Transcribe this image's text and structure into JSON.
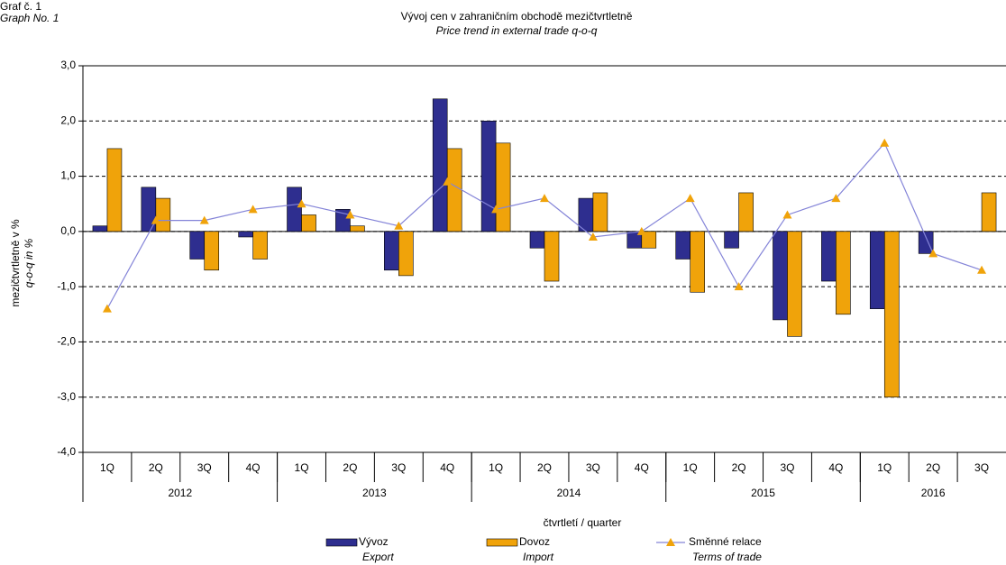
{
  "chart_data": {
    "type": "bar",
    "label_cs": "Graf č. 1",
    "label_en": "Graph No. 1",
    "title": "Vývoj cen v zahraničním obchodě mezičtvrtletně",
    "subtitle": "Price trend in external trade q-o-q",
    "y_label_cs": "mezičtvrtletně v %",
    "y_label_en": "q-o-q in %",
    "x_label": "čtvrtletí / quarter",
    "categories": [
      "1Q",
      "2Q",
      "3Q",
      "4Q",
      "1Q",
      "2Q",
      "3Q",
      "4Q",
      "1Q",
      "2Q",
      "3Q",
      "4Q",
      "1Q",
      "2Q",
      "3Q",
      "4Q",
      "1Q",
      "2Q",
      "3Q"
    ],
    "x_groups": [
      "2012",
      "2013",
      "2014",
      "2015",
      "2016"
    ],
    "ylim": [
      -4,
      3
    ],
    "yticks": [
      {
        "value": -4,
        "label": "-4,0"
      },
      {
        "value": -3,
        "label": "-3,0"
      },
      {
        "value": -2,
        "label": "-2,0"
      },
      {
        "value": -1,
        "label": "-1,0"
      },
      {
        "value": 0,
        "label": "0,0"
      },
      {
        "value": 1,
        "label": "1,0"
      },
      {
        "value": 2,
        "label": "2,0"
      },
      {
        "value": 3,
        "label": "3,0"
      }
    ],
    "grid": true,
    "series": [
      {
        "name": "Vývoz",
        "name_en": "Export",
        "type": "bar",
        "color": "#2e2e8f",
        "values": [
          0.1,
          0.8,
          -0.5,
          -0.1,
          0.8,
          0.4,
          -0.7,
          2.4,
          2.0,
          -0.3,
          0.6,
          -0.3,
          -0.5,
          -0.3,
          -1.6,
          -0.9,
          -1.4,
          -0.4,
          0.0
        ]
      },
      {
        "name": "Dovoz",
        "name_en": "Import",
        "type": "bar",
        "color": "#f0a30a",
        "values": [
          1.5,
          0.6,
          -0.7,
          -0.5,
          0.3,
          0.1,
          -0.8,
          1.5,
          1.6,
          -0.9,
          0.7,
          -0.3,
          -1.1,
          0.7,
          -1.9,
          -1.5,
          -3.0,
          0.0,
          0.7
        ]
      },
      {
        "name": "Směnné relace",
        "name_en": "Terms of trade",
        "type": "line",
        "color": "#8484d8",
        "marker_color": "#f0a30a",
        "values": [
          -1.4,
          0.2,
          0.2,
          0.4,
          0.5,
          0.3,
          0.1,
          0.9,
          0.4,
          0.6,
          -0.1,
          0.0,
          0.6,
          -1.0,
          0.3,
          0.6,
          1.6,
          -0.4,
          -0.7
        ]
      }
    ]
  }
}
